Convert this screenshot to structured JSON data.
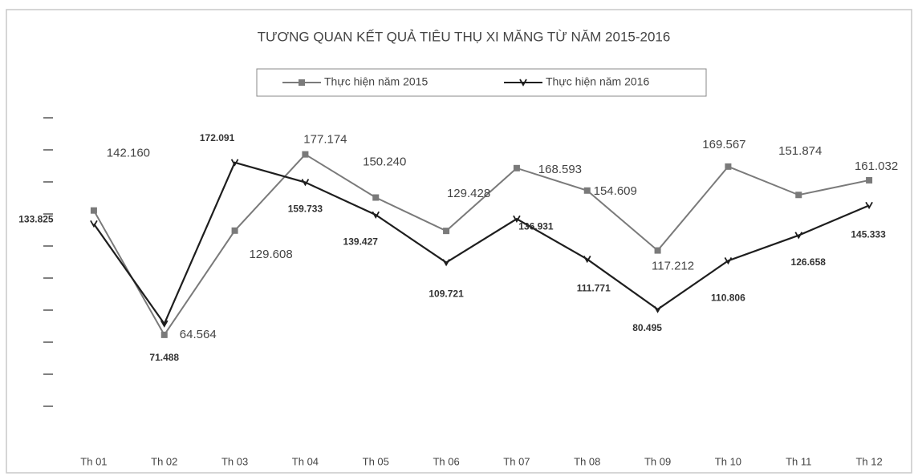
{
  "chart_data": {
    "type": "line",
    "title": "TƯƠNG QUAN KẾT QUẢ TIÊU THỤ XI MĂNG TỪ NĂM 2015-2016",
    "categories": [
      "Th 01",
      "Th 02",
      "Th 03",
      "Th 04",
      "Th 05",
      "Th 06",
      "Th 07",
      "Th 08",
      "Th 09",
      "Th 10",
      "Th 11",
      "Th 12"
    ],
    "series": [
      {
        "name": "Thực hiện năm 2015",
        "color": "#7a7a7a",
        "values": [
          142160,
          64564,
          129608,
          177174,
          150240,
          129428,
          168593,
          154609,
          117212,
          169567,
          151874,
          161032
        ],
        "value_labels": [
          "142.160",
          "64.564",
          "129.608",
          "177.174",
          "150.240",
          "129.428",
          "168.593",
          "154.609",
          "117.212",
          "169.567",
          "151.874",
          "161.032"
        ]
      },
      {
        "name": "Thực hiện năm 2016",
        "color": "#1e1e1e",
        "values": [
          133825,
          71488,
          172091,
          159733,
          139427,
          109721,
          136931,
          111771,
          80495,
          110806,
          126658,
          145333
        ],
        "value_labels": [
          "133.825",
          "71.488",
          "172.091",
          "159.733",
          "139.427",
          "109.721",
          "136.931",
          "111.771",
          "80.495",
          "110.806",
          "126.658",
          "145.333"
        ]
      }
    ],
    "ylim": [
      0,
      200000
    ],
    "yticks": [
      20000,
      40000,
      60000,
      80000,
      100000,
      120000,
      140000,
      160000,
      180000,
      200000
    ],
    "legend": "top"
  }
}
